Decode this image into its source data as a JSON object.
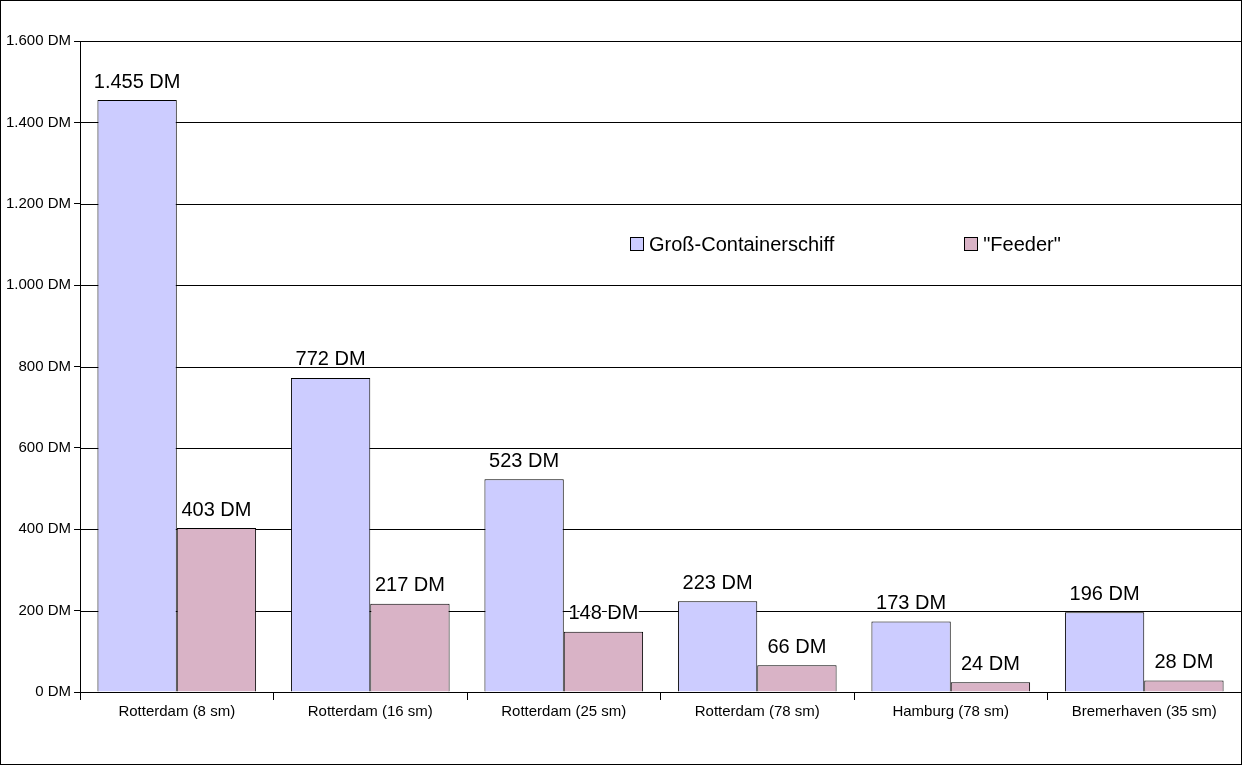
{
  "chart_data": {
    "type": "bar",
    "categories": [
      "Rotterdam (8 sm)",
      "Rotterdam (16 sm)",
      "Rotterdam (25 sm)",
      "Rotterdam (78 sm)",
      "Hamburg (78 sm)",
      "Bremerhaven (35 sm)"
    ],
    "series": [
      {
        "name": "Groß-Containerschiff",
        "color": "#ccccff",
        "values": [
          1455,
          772,
          523,
          223,
          173,
          196
        ],
        "value_labels": [
          "1.455 DM",
          "772 DM",
          "523 DM",
          "223 DM",
          "173 DM",
          "196 DM"
        ]
      },
      {
        "name": "\"Feeder\"",
        "color": "#d9b3c6",
        "values": [
          403,
          217,
          148,
          66,
          24,
          28
        ],
        "value_labels": [
          "403 DM",
          "217 DM",
          "148 DM",
          "66 DM",
          "24 DM",
          "28 DM"
        ]
      }
    ],
    "ylim": [
      0,
      1600
    ],
    "yticks": [
      {
        "value": 0,
        "label": "0 DM"
      },
      {
        "value": 200,
        "label": "200 DM"
      },
      {
        "value": 400,
        "label": "400 DM"
      },
      {
        "value": 600,
        "label": "600 DM"
      },
      {
        "value": 800,
        "label": "800 DM"
      },
      {
        "value": 1000,
        "label": "1.000 DM"
      },
      {
        "value": 1200,
        "label": "1.200 DM"
      },
      {
        "value": 1400,
        "label": "1.400 DM"
      },
      {
        "value": 1600,
        "label": "1.600 DM"
      }
    ],
    "grid": "y",
    "legend": "top right"
  }
}
